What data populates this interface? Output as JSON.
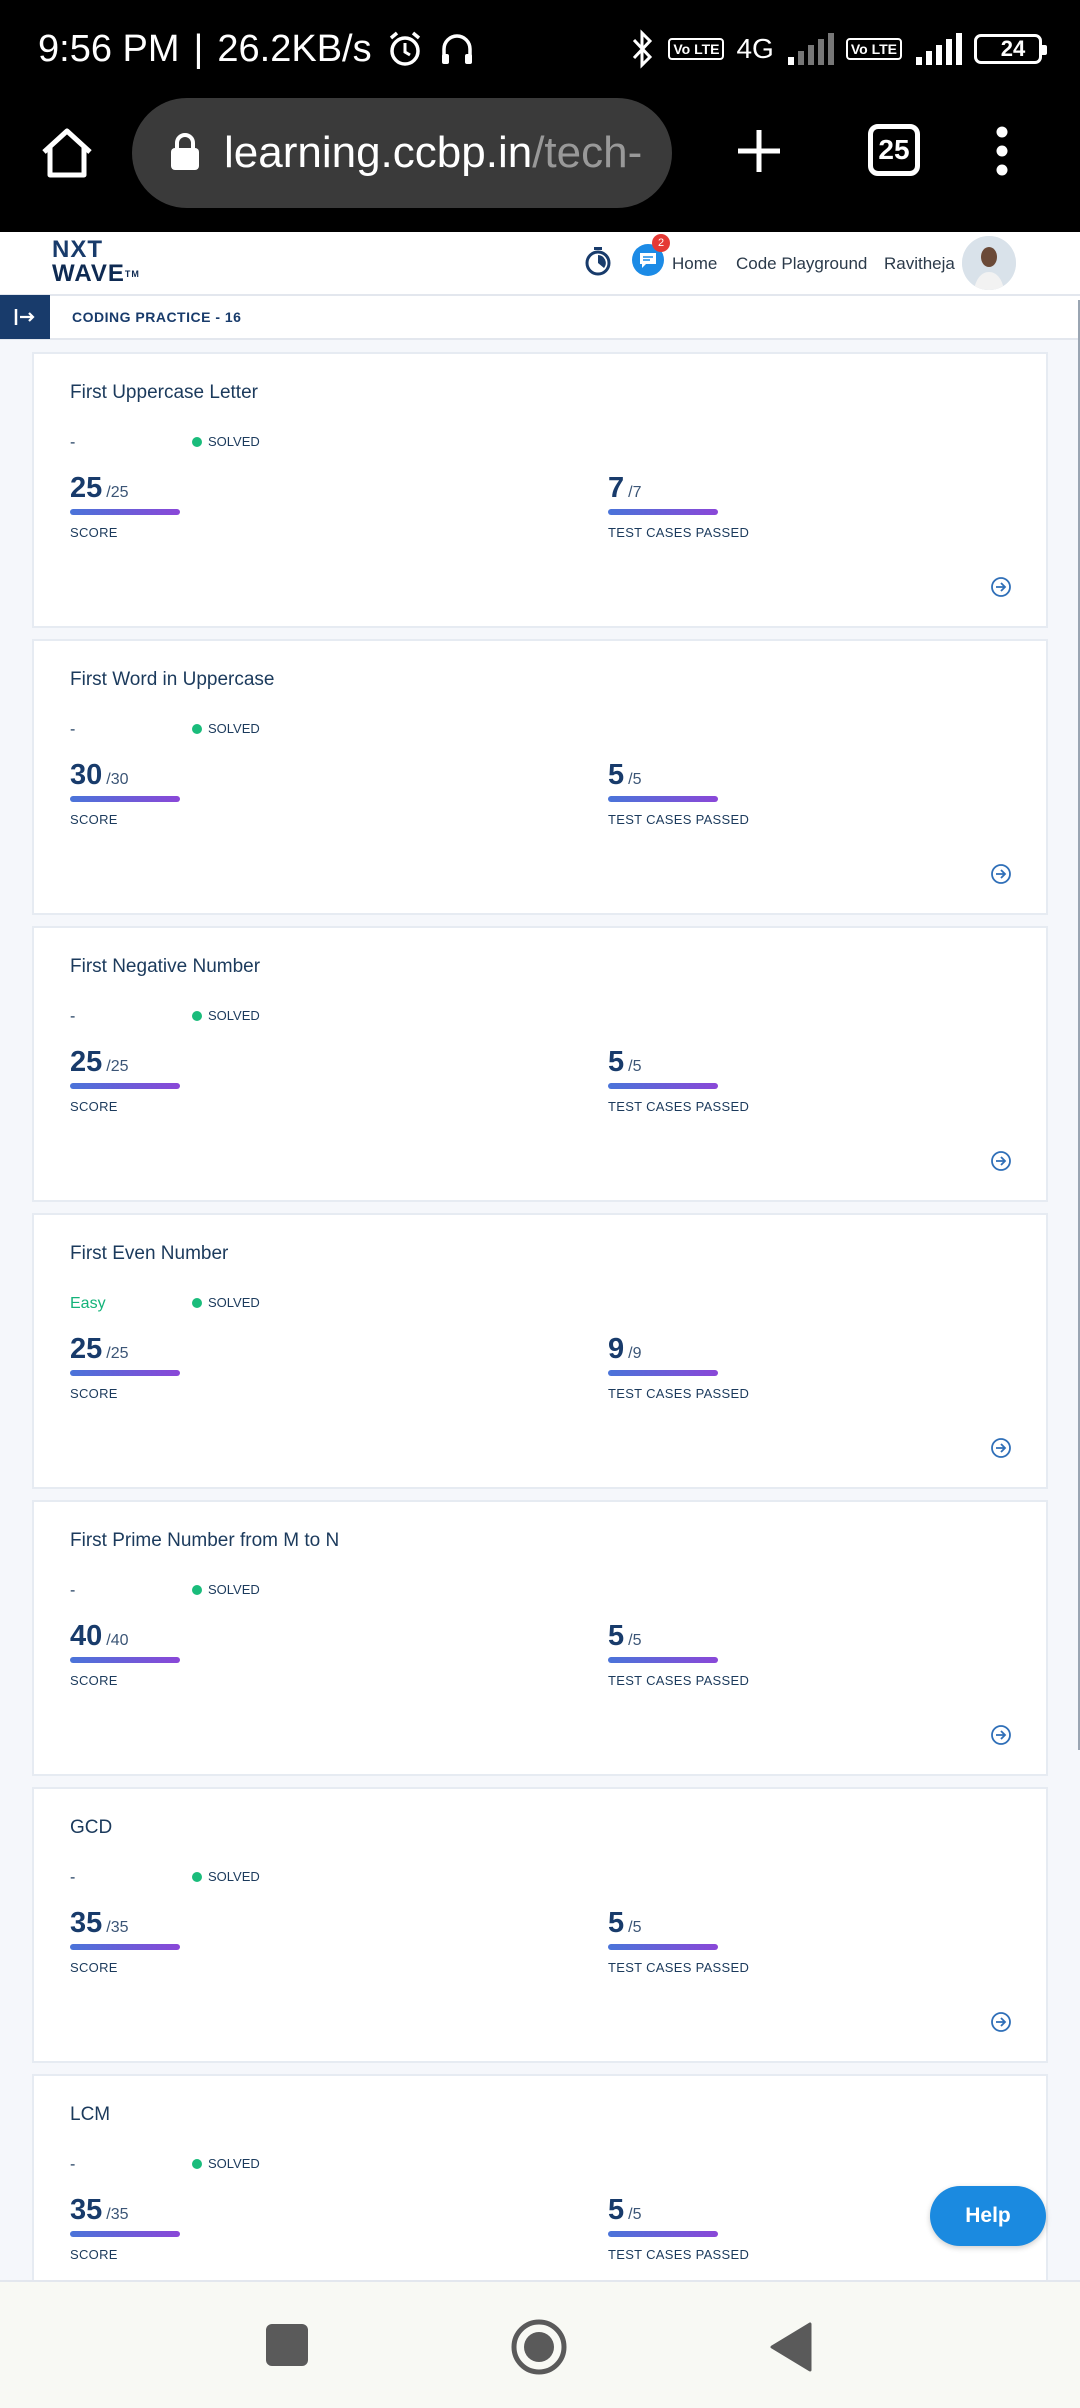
{
  "status_bar": {
    "time": "9:56 PM",
    "separator": "|",
    "net_speed": "26.2KB/s",
    "network_type": "4G",
    "volte_label": "Vo LTE",
    "battery": "24"
  },
  "browser": {
    "url_host": "learning.ccbp.in",
    "url_rest": "/tech-",
    "tab_count": "25"
  },
  "header": {
    "logo_line1": "NXT",
    "logo_line2": "WAVE",
    "logo_tm": "TM",
    "chat_badge": "2",
    "nav_home": "Home",
    "nav_playground": "Code Playground",
    "user_name": "Ravitheja"
  },
  "sub_header": {
    "title": "CODING PRACTICE - 16"
  },
  "labels": {
    "score": "SCORE",
    "tests": "TEST CASES PASSED",
    "solved": "SOLVED"
  },
  "problems": [
    {
      "title": "First Uppercase Letter",
      "difficulty": "-",
      "score": "25",
      "score_max": "/25",
      "tests": "7",
      "tests_max": "/7"
    },
    {
      "title": "First Word in Uppercase",
      "difficulty": "-",
      "score": "30",
      "score_max": "/30",
      "tests": "5",
      "tests_max": "/5"
    },
    {
      "title": "First Negative Number",
      "difficulty": "-",
      "score": "25",
      "score_max": "/25",
      "tests": "5",
      "tests_max": "/5"
    },
    {
      "title": "First Even Number",
      "difficulty": "Easy",
      "score": "25",
      "score_max": "/25",
      "tests": "9",
      "tests_max": "/9"
    },
    {
      "title": "First Prime Number from M to N",
      "difficulty": "-",
      "score": "40",
      "score_max": "/40",
      "tests": "5",
      "tests_max": "/5"
    },
    {
      "title": "GCD",
      "difficulty": "-",
      "score": "35",
      "score_max": "/35",
      "tests": "5",
      "tests_max": "/5"
    },
    {
      "title": "LCM",
      "difficulty": "-",
      "score": "35",
      "score_max": "/35",
      "tests": "5",
      "tests_max": "/5"
    }
  ],
  "help_button": "Help",
  "colors": {
    "primary": "#183b6b",
    "solved": "#1abc7b",
    "easy": "#14b37a",
    "help": "#1b8ae0"
  }
}
